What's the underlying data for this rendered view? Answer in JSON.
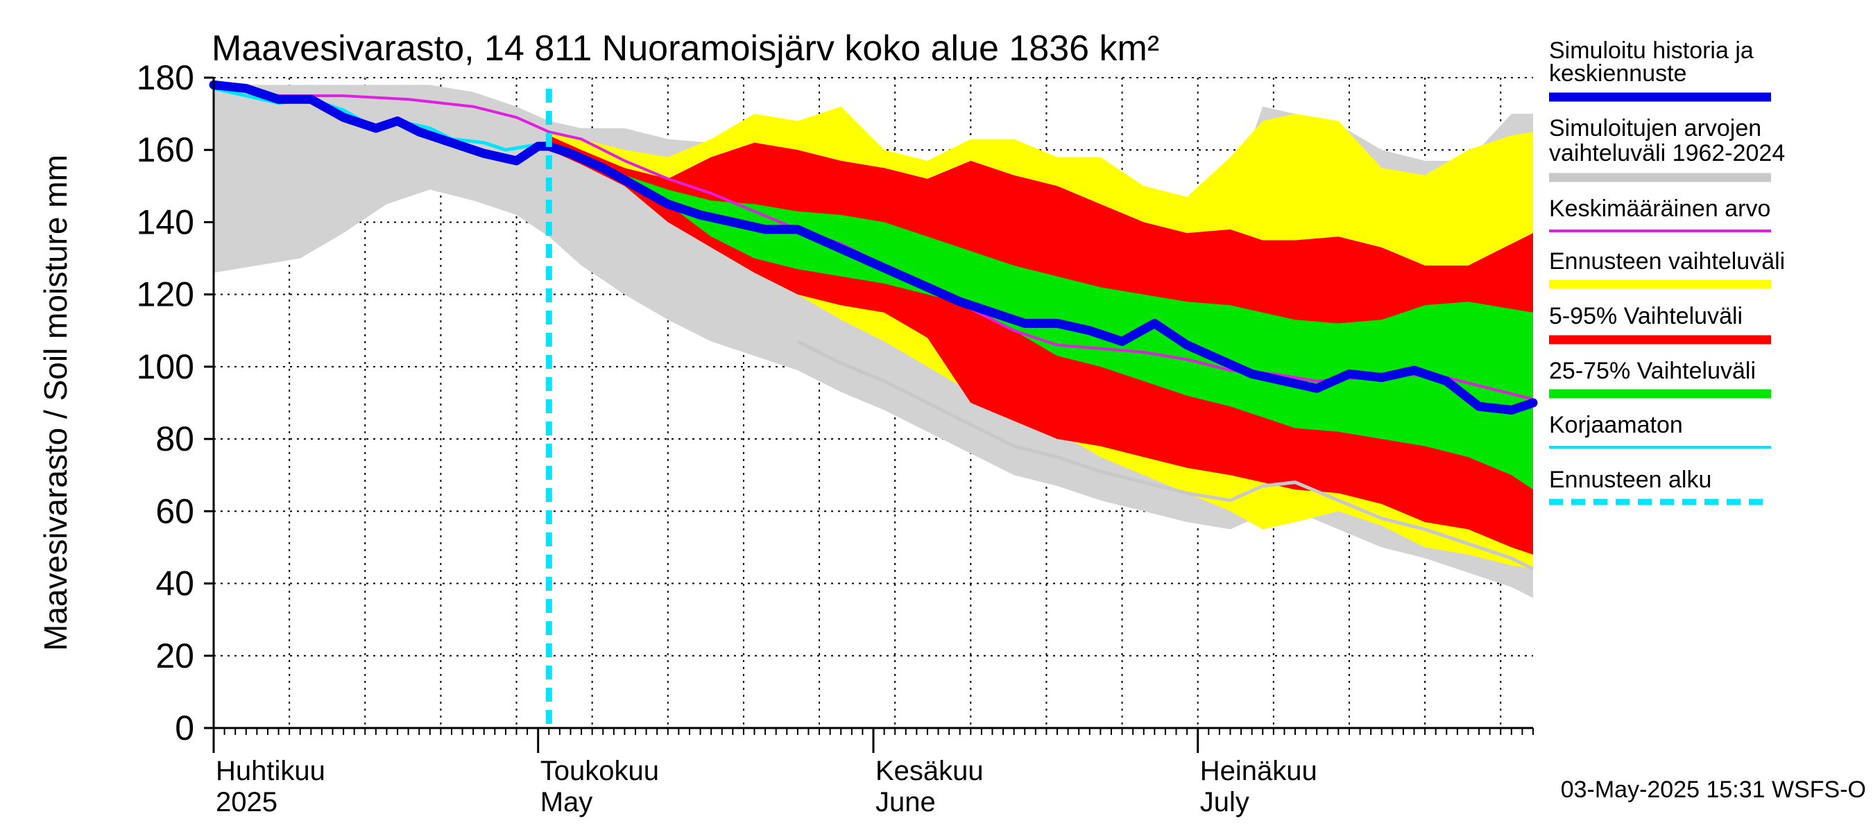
{
  "chart_data": {
    "type": "area",
    "title": "Maavesivarasto, 14 811 Nuoramoisjärv koko alue 1836 km²",
    "ylabel": "Maavesivarasto / Soil moisture   mm",
    "ylim": [
      0,
      180
    ],
    "yticks": [
      0,
      20,
      40,
      60,
      80,
      100,
      120,
      140,
      160,
      180
    ],
    "xlim_days": [
      0,
      122
    ],
    "forecast_start_day": 31,
    "month_labels": [
      {
        "day": 0,
        "fi": "Huhtikuu",
        "en": "2025"
      },
      {
        "day": 30,
        "fi": "Toukokuu",
        "en": "May"
      },
      {
        "day": 61,
        "fi": "Kesäkuu",
        "en": "June"
      },
      {
        "day": 91,
        "fi": "Heinäkuu",
        "en": "July"
      }
    ],
    "legend": [
      {
        "label": "Simuloitu historia ja keskiennuste",
        "color": "#0000e6",
        "style": "thick"
      },
      {
        "label": "Simuloitujen arvojen vaihteluväli 1962-2024",
        "color": "#c8c8c8",
        "style": "thick"
      },
      {
        "label": "Keskimääräinen arvo",
        "color": "#e020e0",
        "style": "thin"
      },
      {
        "label": "Ennusteen vaihteluväli",
        "color": "#ffff00",
        "style": "thick"
      },
      {
        "label": "5-95% Vaihteluväli",
        "color": "#ff0000",
        "style": "thick"
      },
      {
        "label": "25-75% Vaihteluväli",
        "color": "#00e600",
        "style": "thick"
      },
      {
        "label": "Korjaamaton",
        "color": "#00e5ff",
        "style": "thin"
      },
      {
        "label": "Ennusteen alku",
        "color": "#00e5ff",
        "style": "dashed"
      }
    ],
    "footer": "03-May-2025 15:31 WSFS-O",
    "series": {
      "hist_range": {
        "name": "Simuloitujen arvojen vaihteluväli 1962-2024",
        "x": [
          0,
          4,
          8,
          12,
          16,
          20,
          24,
          28,
          31,
          34,
          38,
          42,
          46,
          50,
          54,
          58,
          62,
          66,
          70,
          74,
          78,
          82,
          86,
          90,
          94,
          97,
          100,
          104,
          108,
          112,
          116,
          120,
          122
        ],
        "upper": [
          179,
          178,
          178,
          178,
          178,
          178,
          176,
          172,
          168,
          166,
          166,
          163,
          162,
          161,
          160,
          159,
          158,
          156,
          155,
          154,
          150,
          148,
          145,
          145,
          146,
          172,
          170,
          167,
          160,
          157,
          157,
          170,
          170
        ],
        "lower": [
          126,
          128,
          130,
          137,
          145,
          149,
          146,
          142,
          136,
          128,
          120,
          113,
          107,
          103,
          99,
          93,
          88,
          82,
          76,
          70,
          67,
          63,
          60,
          57,
          55,
          59,
          60,
          55,
          50,
          47,
          43,
          39,
          36
        ]
      },
      "forecast_range": {
        "name": "Ennusteen vaihteluväli",
        "x": [
          31,
          34,
          38,
          42,
          46,
          50,
          54,
          58,
          62,
          66,
          70,
          74,
          78,
          82,
          86,
          90,
          94,
          97,
          100,
          104,
          108,
          112,
          116,
          120,
          122
        ],
        "upper": [
          165,
          163,
          160,
          158,
          163,
          170,
          168,
          172,
          160,
          157,
          163,
          163,
          158,
          158,
          150,
          147,
          158,
          168,
          170,
          168,
          155,
          153,
          160,
          164,
          165
        ],
        "lower": [
          160,
          158,
          152,
          143,
          135,
          127,
          120,
          113,
          107,
          100,
          93,
          87,
          82,
          75,
          70,
          65,
          60,
          55,
          57,
          60,
          56,
          50,
          48,
          45,
          44
        ]
      },
      "p5_95": {
        "name": "5-95% Vaihteluväli",
        "x": [
          31,
          34,
          38,
          42,
          46,
          50,
          54,
          58,
          62,
          66,
          70,
          74,
          78,
          82,
          86,
          90,
          94,
          97,
          100,
          104,
          108,
          112,
          116,
          120,
          122
        ],
        "upper": [
          164,
          160,
          155,
          152,
          158,
          162,
          160,
          157,
          155,
          152,
          157,
          153,
          150,
          145,
          140,
          137,
          138,
          135,
          135,
          136,
          133,
          128,
          128,
          134,
          137
        ],
        "lower": [
          160,
          156,
          150,
          140,
          133,
          126,
          120,
          117,
          115,
          108,
          90,
          85,
          80,
          78,
          75,
          72,
          70,
          68,
          66,
          65,
          62,
          57,
          55,
          50,
          48
        ]
      },
      "p25_75": {
        "name": "25-75% Vaihteluväli",
        "x": [
          31,
          34,
          38,
          42,
          46,
          50,
          54,
          58,
          62,
          66,
          70,
          74,
          78,
          82,
          86,
          90,
          94,
          97,
          100,
          104,
          108,
          112,
          116,
          120,
          122
        ],
        "upper": [
          162,
          158,
          153,
          149,
          146,
          145,
          143,
          142,
          140,
          136,
          132,
          128,
          125,
          122,
          120,
          118,
          117,
          115,
          113,
          112,
          113,
          117,
          118,
          116,
          115
        ],
        "lower": [
          161,
          157,
          151,
          145,
          136,
          130,
          127,
          125,
          123,
          120,
          117,
          110,
          103,
          100,
          96,
          92,
          89,
          86,
          83,
          82,
          80,
          78,
          75,
          70,
          66
        ]
      },
      "simulated": {
        "name": "Simuloitu historia ja keskiennuste",
        "x": [
          0,
          3,
          6,
          9,
          12,
          15,
          17,
          19,
          22,
          25,
          28,
          30,
          31,
          33,
          36,
          39,
          42,
          45,
          48,
          51,
          54,
          57,
          60,
          63,
          66,
          69,
          72,
          75,
          78,
          81,
          84,
          87,
          90,
          93,
          96,
          99,
          102,
          105,
          108,
          111,
          114,
          117,
          120,
          122
        ],
        "values": [
          178,
          177,
          174,
          174,
          169,
          166,
          168,
          165,
          162,
          159,
          157,
          161,
          161,
          159,
          155,
          150,
          145,
          142,
          140,
          138,
          138,
          134,
          130,
          126,
          122,
          118,
          115,
          112,
          112,
          110,
          107,
          112,
          106,
          102,
          98,
          96,
          94,
          98,
          97,
          99,
          96,
          89,
          88,
          90
        ]
      },
      "mean": {
        "name": "Keskimääräinen arvo",
        "x": [
          0,
          6,
          12,
          18,
          24,
          28,
          31,
          34,
          38,
          42,
          46,
          50,
          54,
          58,
          62,
          66,
          70,
          74,
          78,
          82,
          86,
          90,
          94,
          98,
          102,
          106,
          110,
          114,
          118,
          122
        ],
        "values": [
          178,
          175,
          175,
          174,
          172,
          169,
          165,
          163,
          157,
          152,
          148,
          143,
          138,
          134,
          128,
          122,
          116,
          110,
          106,
          105,
          104,
          102,
          99,
          98,
          96,
          97,
          98,
          97,
          94,
          91
        ]
      },
      "uncorrected": {
        "name": "Korjaamaton",
        "x": [
          0,
          3,
          6,
          9,
          12,
          15,
          17,
          20,
          22,
          25,
          27,
          29,
          31
        ],
        "values": [
          177,
          175,
          173,
          174,
          171,
          166,
          168,
          166,
          163,
          162,
          160,
          161,
          162
        ]
      }
    }
  }
}
